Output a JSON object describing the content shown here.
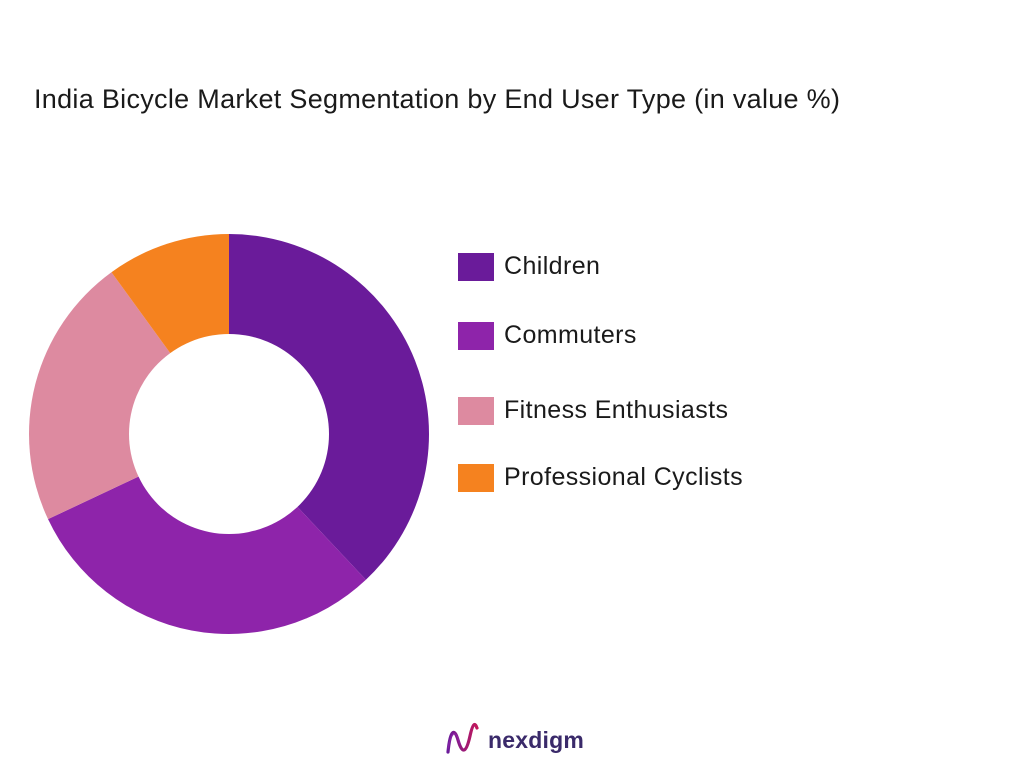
{
  "chart_data": {
    "type": "pie",
    "title": "India Bicycle Market Segmentation by End User Type  (in value %)",
    "categories": [
      "Children",
      "Commuters",
      "Fitness Enthusiasts",
      "Professional Cyclists"
    ],
    "values": [
      38,
      30,
      22,
      10
    ],
    "colors": [
      "#6a1b9a",
      "#8e24aa",
      "#dd8aa0",
      "#f5821f"
    ],
    "legend_position": "right",
    "donut": true
  },
  "brand": {
    "name": "nexdigm",
    "logo_icon": "nexdigm-logo-icon"
  }
}
